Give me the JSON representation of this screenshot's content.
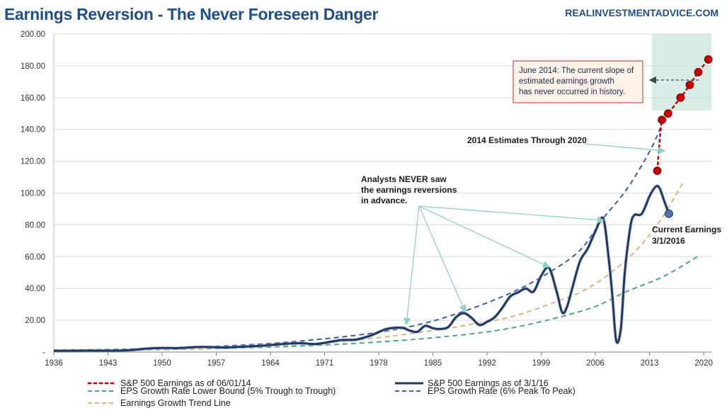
{
  "header": {
    "title": "Earnings Reversion - The Never Foreseen Danger",
    "source": "REALINVESTMENTADVICE.COM"
  },
  "colors": {
    "sp500_actual": "#1f3864",
    "sp500_estimates": "#c00000",
    "lower_bound": "#4aa58a",
    "peak_to_peak": "#3b5fa8",
    "trend_line": "#e8b07a",
    "highlight_box": "#b9dcd3",
    "annotation_arrow": "#8fd0c4"
  },
  "annotations": {
    "analysts": [
      "Analysts NEVER saw",
      "the earnings reversions",
      "in advance."
    ],
    "estimates": "2014 Estimates Through 2020",
    "june2014": [
      "June 2014: The current slope of",
      "estimated earnings growth",
      "has never occurred in history."
    ],
    "current": [
      "Current Earnings",
      "3/1/2016"
    ]
  },
  "chart_data": {
    "type": "line",
    "xlim": [
      1936,
      2021
    ],
    "ylim": [
      0,
      200
    ],
    "x_ticks": [
      "1936",
      "1943",
      "1950",
      "1957",
      "1964",
      "1971",
      "1978",
      "1985",
      "1992",
      "1999",
      "2006",
      "2013",
      "2020"
    ],
    "y_ticks": [
      "-",
      "20.00",
      "40.00",
      "60.00",
      "80.00",
      "100.00",
      "120.00",
      "140.00",
      "160.00",
      "180.00",
      "200.00"
    ],
    "grid": "horizontal",
    "legend_position": "bottom",
    "series": [
      {
        "name": "S&P 500 Earnings as of 06/01/14",
        "style": "dashed-markers",
        "points": [
          [
            2014.0,
            114
          ],
          [
            2014.6,
            146
          ],
          [
            2015.4,
            150
          ],
          [
            2017.0,
            160
          ],
          [
            2018.2,
            168
          ],
          [
            2019.3,
            176
          ],
          [
            2020.6,
            184
          ]
        ]
      },
      {
        "name": "S&P 500 Earnings as of 3/1/16",
        "style": "solid",
        "points": [
          [
            1936,
            0.8
          ],
          [
            1940,
            0.9
          ],
          [
            1945,
            1.0
          ],
          [
            1948,
            2.2
          ],
          [
            1950,
            2.6
          ],
          [
            1952,
            2.5
          ],
          [
            1955,
            3.2
          ],
          [
            1958,
            2.9
          ],
          [
            1960,
            3.3
          ],
          [
            1963,
            4.0
          ],
          [
            1966,
            5.2
          ],
          [
            1968,
            5.6
          ],
          [
            1970,
            5.1
          ],
          [
            1973,
            7.5
          ],
          [
            1975,
            7.8
          ],
          [
            1977,
            10.5
          ],
          [
            1979,
            14.5
          ],
          [
            1981,
            15.3
          ],
          [
            1982,
            13.5
          ],
          [
            1983,
            12.8
          ],
          [
            1984,
            16.5
          ],
          [
            1985,
            15.0
          ],
          [
            1986,
            14.5
          ],
          [
            1987,
            15.8
          ],
          [
            1988,
            22.0
          ],
          [
            1989,
            24.5
          ],
          [
            1990,
            21.5
          ],
          [
            1991,
            17.0
          ],
          [
            1992,
            19.0
          ],
          [
            1993,
            22.0
          ],
          [
            1994,
            28.0
          ],
          [
            1995,
            35.0
          ],
          [
            1996,
            37.5
          ],
          [
            1997,
            40.0
          ],
          [
            1998,
            38.0
          ],
          [
            1999,
            48.0
          ],
          [
            2000,
            53.0
          ],
          [
            2001,
            38.0
          ],
          [
            2001.7,
            25.0
          ],
          [
            2002.3,
            28.0
          ],
          [
            2003,
            40.0
          ],
          [
            2004,
            57.0
          ],
          [
            2005,
            65.0
          ],
          [
            2006,
            76.0
          ],
          [
            2007,
            84.0
          ],
          [
            2007.7,
            60.0
          ],
          [
            2008.2,
            35.0
          ],
          [
            2008.7,
            7.0
          ],
          [
            2009.3,
            15.0
          ],
          [
            2009.8,
            50.0
          ],
          [
            2010.5,
            78.0
          ],
          [
            2011,
            86.0
          ],
          [
            2012,
            87.0
          ],
          [
            2013,
            98.0
          ],
          [
            2013.8,
            104.0
          ],
          [
            2014.3,
            103.0
          ],
          [
            2014.9,
            95.0
          ],
          [
            2015.5,
            87.0
          ]
        ]
      },
      {
        "name": "EPS Growth Rate Lower Bound (5% Trough to Trough)",
        "style": "dashed",
        "points": [
          [
            1936,
            0.6
          ],
          [
            1945,
            1.2
          ],
          [
            1955,
            2.0
          ],
          [
            1965,
            3.3
          ],
          [
            1975,
            5.5
          ],
          [
            1985,
            9.0
          ],
          [
            1995,
            15.0
          ],
          [
            2005,
            27.0
          ],
          [
            2010,
            38.0
          ],
          [
            2015,
            48.0
          ],
          [
            2019.5,
            61.0
          ]
        ]
      },
      {
        "name": "EPS Growth Rate (6% Peak To Peak)",
        "style": "dashed",
        "points": [
          [
            1936,
            1.2
          ],
          [
            1945,
            1.8
          ],
          [
            1955,
            3.2
          ],
          [
            1965,
            5.8
          ],
          [
            1975,
            10.5
          ],
          [
            1982,
            16.0
          ],
          [
            1988,
            24.0
          ],
          [
            1995,
            37.0
          ],
          [
            2000,
            50.0
          ],
          [
            2004,
            64.0
          ],
          [
            2007,
            84.0
          ],
          [
            2010,
            102.0
          ],
          [
            2013,
            126.0
          ],
          [
            2014.5,
            142.0
          ]
        ]
      },
      {
        "name": "Earnings Growth Trend Line",
        "style": "dashed",
        "points": [
          [
            1936,
            1.0
          ],
          [
            1945,
            1.3
          ],
          [
            1955,
            2.2
          ],
          [
            1965,
            4.0
          ],
          [
            1975,
            7.5
          ],
          [
            1985,
            13.5
          ],
          [
            1990,
            17.5
          ],
          [
            1995,
            22.0
          ],
          [
            2000,
            30.0
          ],
          [
            2005,
            40.0
          ],
          [
            2010,
            58.0
          ],
          [
            2014,
            80.0
          ],
          [
            2017.5,
            108.0
          ]
        ]
      }
    ]
  }
}
